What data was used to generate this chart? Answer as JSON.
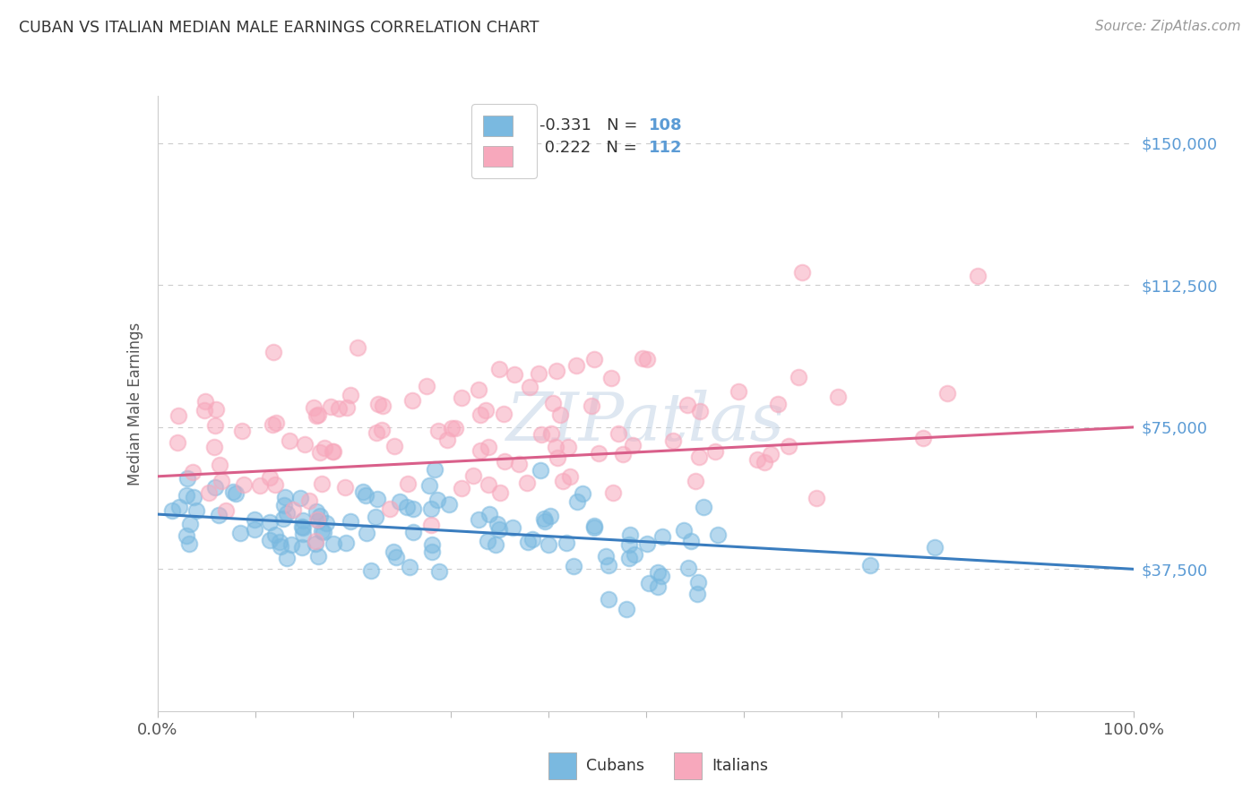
{
  "title": "CUBAN VS ITALIAN MEDIAN MALE EARNINGS CORRELATION CHART",
  "source": "Source: ZipAtlas.com",
  "ylabel": "Median Male Earnings",
  "y_ticks": [
    37500,
    75000,
    112500,
    150000
  ],
  "y_tick_labels": [
    "$37,500",
    "$75,000",
    "$112,500",
    "$150,000"
  ],
  "color_cubans": "#7ab9e0",
  "color_italians": "#f7a8bc",
  "color_line_cubans": "#3a7dbf",
  "color_line_italians": "#d95f8a",
  "background_color": "#ffffff",
  "watermark": "ZIPatlas",
  "ylim_min": 0,
  "ylim_max": 162500,
  "xlim_min": 0.0,
  "xlim_max": 1.0,
  "cubans_line_x0": 0.0,
  "cubans_line_y0": 52000,
  "cubans_line_x1": 1.0,
  "cubans_line_y1": 37500,
  "italians_line_x0": 0.0,
  "italians_line_y0": 62000,
  "italians_line_x1": 1.0,
  "italians_line_y1": 75000
}
